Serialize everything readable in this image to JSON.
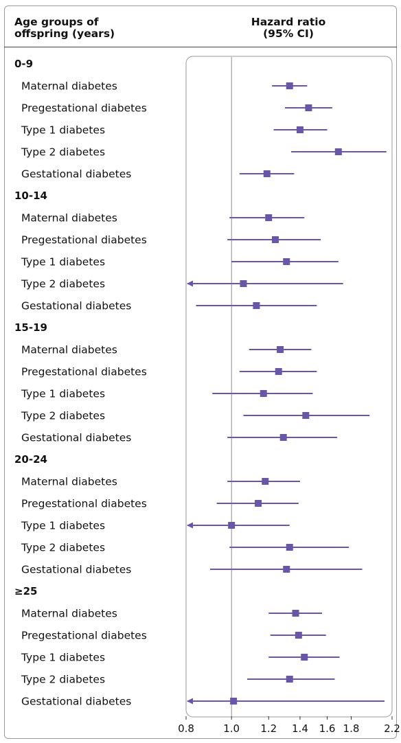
{
  "header": {
    "left_line1": "Age groups of",
    "left_line2": "offspring (years)",
    "right_line1": "Hazard ratio",
    "right_line2": "(95% CI)"
  },
  "colors": {
    "marker": "#6b55a8",
    "ci": "#6b55a8",
    "reference_line": "#8a8a8a",
    "panel_border": "#9a9a9a"
  },
  "chart_data": {
    "type": "forest",
    "title": "",
    "xlabel": "",
    "ylabel": "",
    "x_scale": "log",
    "xlim": [
      0.8,
      2.2
    ],
    "x_ticks": [
      0.8,
      1.0,
      1.2,
      1.4,
      1.6,
      1.8,
      2.2
    ],
    "x_tick_labels": [
      "0.8",
      "1.0",
      "1.2",
      "1.4",
      "1.6",
      "1.8",
      "2.2"
    ],
    "reference_line": 1.0,
    "groups": [
      {
        "label": "0-9",
        "rows": [
          {
            "label": "Maternal diabetes",
            "hr": 1.33,
            "lo": 1.22,
            "hi": 1.45,
            "arrow_left": false
          },
          {
            "label": "Pregestational diabetes",
            "hr": 1.46,
            "lo": 1.3,
            "hi": 1.64,
            "arrow_left": false
          },
          {
            "label": "Type 1 diabetes",
            "hr": 1.4,
            "lo": 1.23,
            "hi": 1.6,
            "arrow_left": false
          },
          {
            "label": "Type 2 diabetes",
            "hr": 1.69,
            "lo": 1.34,
            "hi": 2.14,
            "arrow_left": false
          },
          {
            "label": "Gestational diabetes",
            "hr": 1.19,
            "lo": 1.04,
            "hi": 1.36,
            "arrow_left": false
          }
        ]
      },
      {
        "label": "10-14",
        "rows": [
          {
            "label": "Maternal diabetes",
            "hr": 1.2,
            "lo": 0.99,
            "hi": 1.43,
            "arrow_left": false
          },
          {
            "label": "Pregestational diabetes",
            "hr": 1.24,
            "lo": 0.98,
            "hi": 1.55,
            "arrow_left": false
          },
          {
            "label": "Type 1 diabetes",
            "hr": 1.31,
            "lo": 1.0,
            "hi": 1.69,
            "arrow_left": false
          },
          {
            "label": "Type 2 diabetes",
            "hr": 1.06,
            "lo": 0.8,
            "hi": 1.73,
            "arrow_left": true
          },
          {
            "label": "Gestational diabetes",
            "hr": 1.13,
            "lo": 0.84,
            "hi": 1.52,
            "arrow_left": false
          }
        ]
      },
      {
        "label": "15-19",
        "rows": [
          {
            "label": "Maternal diabetes",
            "hr": 1.27,
            "lo": 1.09,
            "hi": 1.48,
            "arrow_left": false
          },
          {
            "label": "Pregestational diabetes",
            "hr": 1.26,
            "lo": 1.04,
            "hi": 1.52,
            "arrow_left": false
          },
          {
            "label": "Type 1 diabetes",
            "hr": 1.17,
            "lo": 0.91,
            "hi": 1.49,
            "arrow_left": false
          },
          {
            "label": "Type 2 diabetes",
            "hr": 1.44,
            "lo": 1.06,
            "hi": 1.97,
            "arrow_left": false
          },
          {
            "label": "Gestational diabetes",
            "hr": 1.29,
            "lo": 0.98,
            "hi": 1.68,
            "arrow_left": false
          }
        ]
      },
      {
        "label": "20-24",
        "rows": [
          {
            "label": "Maternal diabetes",
            "hr": 1.18,
            "lo": 0.98,
            "hi": 1.4,
            "arrow_left": false
          },
          {
            "label": "Pregestational diabetes",
            "hr": 1.14,
            "lo": 0.93,
            "hi": 1.39,
            "arrow_left": false
          },
          {
            "label": "Type 1 diabetes",
            "hr": 1.0,
            "lo": 0.8,
            "hi": 1.33,
            "arrow_left": true
          },
          {
            "label": "Type 2 diabetes",
            "hr": 1.33,
            "lo": 0.99,
            "hi": 1.78,
            "arrow_left": false
          },
          {
            "label": "Gestational diabetes",
            "hr": 1.31,
            "lo": 0.9,
            "hi": 1.9,
            "arrow_left": false
          }
        ]
      },
      {
        "label": "≥25",
        "rows": [
          {
            "label": "Maternal diabetes",
            "hr": 1.37,
            "lo": 1.2,
            "hi": 1.56,
            "arrow_left": false
          },
          {
            "label": "Pregestational diabetes",
            "hr": 1.39,
            "lo": 1.21,
            "hi": 1.59,
            "arrow_left": false
          },
          {
            "label": "Type 1 diabetes",
            "hr": 1.43,
            "lo": 1.2,
            "hi": 1.7,
            "arrow_left": false
          },
          {
            "label": "Type 2 diabetes",
            "hr": 1.33,
            "lo": 1.08,
            "hi": 1.66,
            "arrow_left": false
          },
          {
            "label": "Gestational diabetes",
            "hr": 1.01,
            "lo": 0.8,
            "hi": 2.12,
            "arrow_left": true
          }
        ]
      }
    ]
  }
}
